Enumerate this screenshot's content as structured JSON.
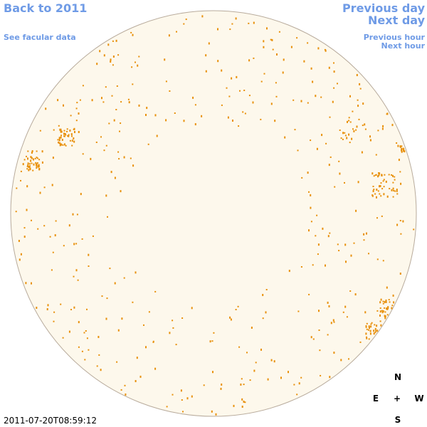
{
  "nav": {
    "back": "Back to 2011",
    "facular": "See facular data",
    "previous_day": "Previous day",
    "next_day": "Next day",
    "previous_hour": "Previous hour",
    "next_hour": "Next hour"
  },
  "compass": {
    "north": "N",
    "east": "E",
    "center": "+",
    "west": "W",
    "south": "S"
  },
  "timestamp": "2011-07-20T08:59:12"
}
